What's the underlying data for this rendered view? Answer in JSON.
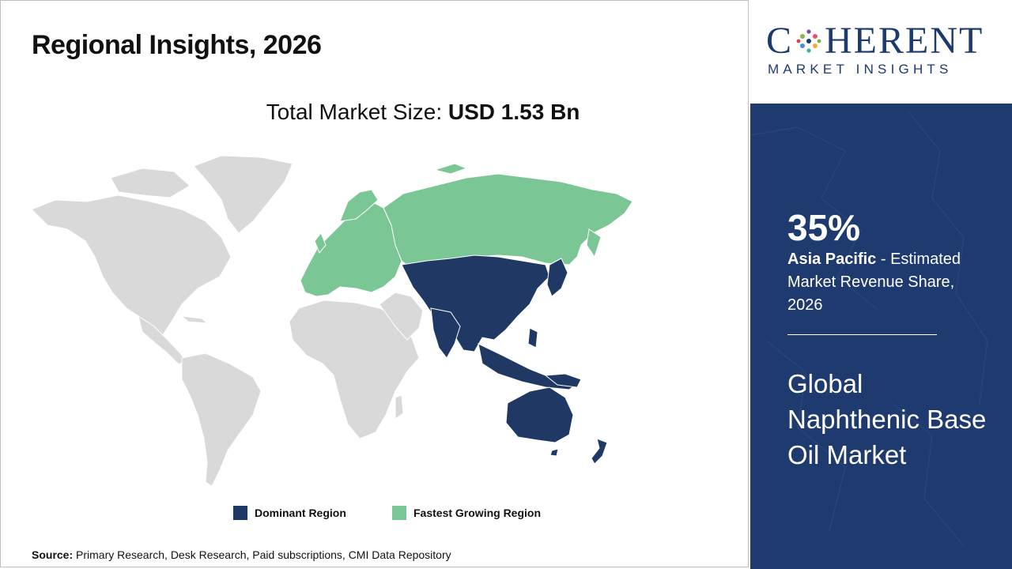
{
  "header": {
    "title": "Regional Insights, 2026"
  },
  "market_size": {
    "label": "Total Market Size:",
    "value": "USD 1.53 Bn"
  },
  "legend": {
    "dominant": {
      "label": "Dominant Region",
      "color": "#1f3864"
    },
    "fastest": {
      "label": "Fastest Growing Region",
      "color": "#7ac795"
    }
  },
  "map": {
    "base_color": "#d9d9d9",
    "dominant_region": "Asia Pacific",
    "fastest_growing_region": "Europe and Russia"
  },
  "source": {
    "label": "Source:",
    "text": "Primary Research, Desk Research, Paid subscriptions, CMI Data Repository"
  },
  "logo": {
    "top": "C●HERENT",
    "top_prefix": "C",
    "top_suffix": "HERENT",
    "bottom": "MARKET INSIGHTS"
  },
  "panel": {
    "stat": "35%",
    "region": "Asia Pacific",
    "stat_text": " - Estimated Market Revenue Share, 2026",
    "market_name": "Global Naphthenic Base Oil Market"
  }
}
